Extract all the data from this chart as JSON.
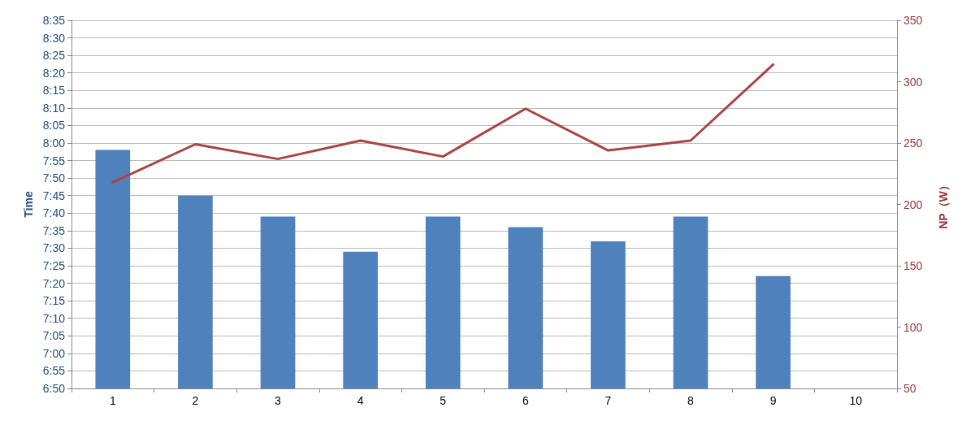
{
  "chart_data": {
    "type": "bar",
    "ylabel": "Time",
    "y2label": "NP（W）",
    "categories": [
      "1",
      "2",
      "3",
      "4",
      "5",
      "6",
      "7",
      "8",
      "9",
      "10"
    ],
    "series": [
      {
        "color": "#4f81bd",
        "values": [
          7.967,
          7.75,
          7.65,
          7.483,
          7.65,
          7.6,
          7.533,
          7.65,
          7.367,
          null
        ]
      },
      {
        "type": "line",
        "axis": "y2",
        "color": "#a94442",
        "values": [
          218,
          249,
          237,
          252,
          239,
          278,
          244,
          252,
          314,
          null
        ]
      }
    ],
    "ylim": [
      6.8333,
      8.5833
    ],
    "yticks": [
      {
        "value": 6.8333,
        "label": "6:50"
      },
      {
        "value": 6.9167,
        "label": "6:55"
      },
      {
        "value": 7,
        "label": "7:00"
      },
      {
        "value": 7.0833,
        "label": "7:05"
      },
      {
        "value": 7.1667,
        "label": "7:10"
      },
      {
        "value": 7.25,
        "label": "7:15"
      },
      {
        "value": 7.3333,
        "label": "7:20"
      },
      {
        "value": 7.4167,
        "label": "7:25"
      },
      {
        "value": 7.5,
        "label": "7:30"
      },
      {
        "value": 7.5833,
        "label": "7:35"
      },
      {
        "value": 7.6667,
        "label": "7:40"
      },
      {
        "value": 7.75,
        "label": "7:45"
      },
      {
        "value": 7.8333,
        "label": "7:50"
      },
      {
        "value": 7.9167,
        "label": "7:55"
      },
      {
        "value": 8,
        "label": "8:00"
      },
      {
        "value": 8.0833,
        "label": "8:05"
      },
      {
        "value": 8.1667,
        "label": "8:10"
      },
      {
        "value": 8.25,
        "label": "8:15"
      },
      {
        "value": 8.3333,
        "label": "8:20"
      },
      {
        "value": 8.4167,
        "label": "8:25"
      },
      {
        "value": 8.5,
        "label": "8:30"
      },
      {
        "value": 8.5833,
        "label": "8:35"
      }
    ],
    "y2lim": [
      50,
      350
    ],
    "y2ticks": [
      50,
      100,
      150,
      200,
      250,
      300,
      350
    ],
    "grid": "y",
    "marker": "none",
    "line_style": "solid"
  }
}
